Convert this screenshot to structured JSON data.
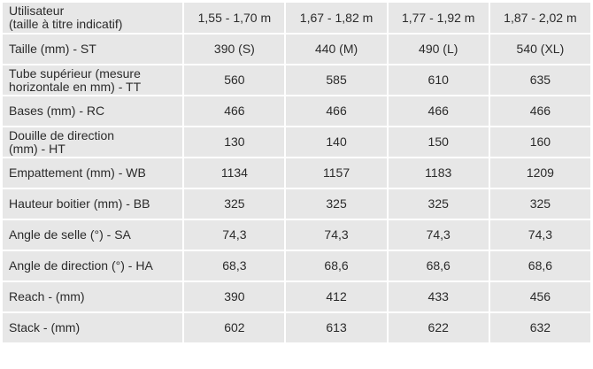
{
  "table": {
    "header": {
      "label_line1": "Utilisateur",
      "label_line2": "(taille à titre indicatif)",
      "columns": [
        "1,55 - 1,70 m",
        "1,67 - 1,82 m",
        "1,77 - 1,92 m",
        "1,87 - 2,02 m"
      ]
    },
    "rows": [
      {
        "label": [
          "Taille (mm) - ST"
        ],
        "values": [
          "390 (S)",
          "440 (M)",
          "490 (L)",
          "540 (XL)"
        ]
      },
      {
        "label": [
          "Tube supérieur (mesure",
          "horizontale en mm) - TT"
        ],
        "values": [
          "560",
          "585",
          "610",
          "635"
        ]
      },
      {
        "label": [
          "Bases (mm) - RC"
        ],
        "values": [
          "466",
          "466",
          "466",
          "466"
        ]
      },
      {
        "label": [
          "Douille de direction",
          "(mm) - HT"
        ],
        "values": [
          "130",
          "140",
          "150",
          "160"
        ]
      },
      {
        "label": [
          "Empattement (mm) - WB"
        ],
        "values": [
          "1134",
          "1157",
          "1183",
          "1209"
        ]
      },
      {
        "label": [
          "Hauteur boitier (mm) - BB"
        ],
        "values": [
          "325",
          "325",
          "325",
          "325"
        ]
      },
      {
        "label": [
          "Angle de selle (°) - SA"
        ],
        "values": [
          "74,3",
          "74,3",
          "74,3",
          "74,3"
        ]
      },
      {
        "label": [
          "Angle de direction (°) - HA"
        ],
        "values": [
          "68,3",
          "68,6",
          "68,6",
          "68,6"
        ]
      },
      {
        "label": [
          "Reach - (mm)"
        ],
        "values": [
          "390",
          "412",
          "433",
          "456"
        ]
      },
      {
        "label": [
          "Stack - (mm)"
        ],
        "values": [
          "602",
          "613",
          "622",
          "632"
        ]
      }
    ]
  }
}
